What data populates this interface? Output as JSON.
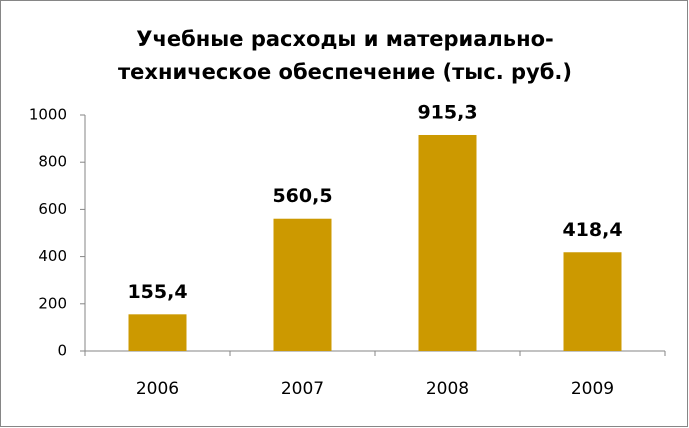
{
  "chart_data": {
    "type": "bar",
    "title": [
      "Учебные расходы и материально-",
      "техническое обеспечение (тыс. руб.)"
    ],
    "categories": [
      "2006",
      "2007",
      "2008",
      "2009"
    ],
    "values": [
      155.4,
      560.5,
      915.3,
      418.4
    ],
    "value_labels": [
      "155,4",
      "560,5",
      "915,3",
      "418,4"
    ],
    "color": "#cc9900",
    "ylim": [
      0,
      1000
    ],
    "yticks": [
      0,
      200,
      400,
      600,
      800,
      1000
    ],
    "grid": false
  }
}
